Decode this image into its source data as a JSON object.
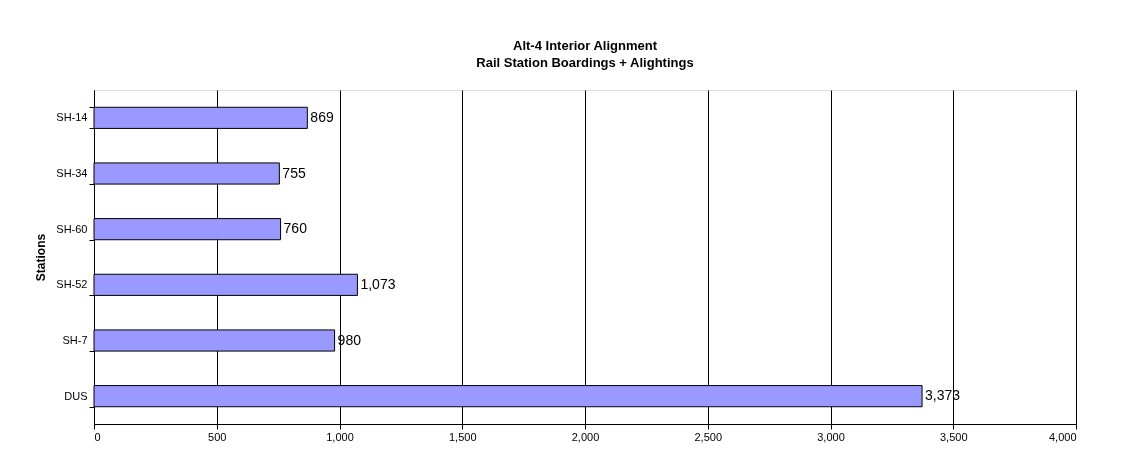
{
  "chart_data": {
    "type": "bar",
    "orientation": "horizontal",
    "title": "Alt-4 Interior Alignment",
    "subtitle": "Rail Station Boardings + Alightings",
    "ylabel": "Stations",
    "categories": [
      "SH-14",
      "SH-34",
      "SH-60",
      "SH-52",
      "SH-7",
      "DUS"
    ],
    "values": [
      869,
      755,
      760,
      1073,
      980,
      3373
    ],
    "color": "#9999ff",
    "value_labels": [
      "869",
      "755",
      "760",
      "1,073",
      "980",
      "3,373"
    ],
    "xlim": [
      0,
      4000
    ],
    "xticks": [
      0,
      500,
      {
        "value": 1000,
        "label": "1,000"
      },
      {
        "value": 1500,
        "label": "1,500"
      },
      {
        "value": 2000,
        "label": "2,000"
      },
      {
        "value": 2500,
        "label": "2,500"
      },
      {
        "value": 3000,
        "label": "3,000"
      },
      {
        "value": 3500,
        "label": "3,500"
      },
      {
        "value": 4000,
        "label": "4,000"
      }
    ],
    "grid": "x"
  }
}
